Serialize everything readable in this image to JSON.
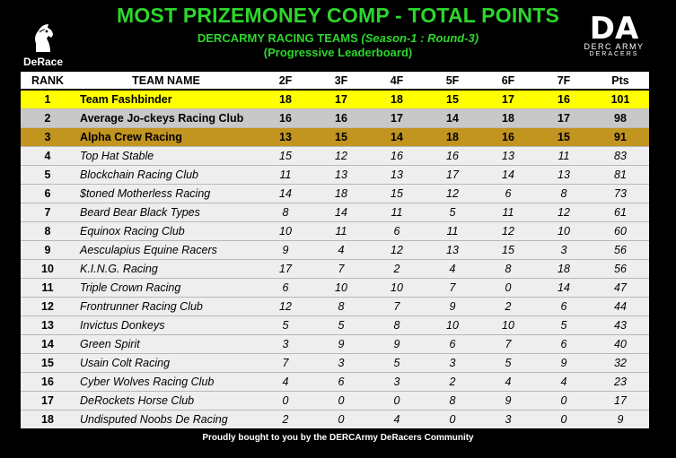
{
  "header": {
    "title": "MOST PRIZEMONEY COMP - TOTAL POINTS",
    "subtitle_main": "DERCARMY RACING TEAMS",
    "subtitle_season": "(Season-1 : Round-3)",
    "subtitle2": "(Progressive Leaderboard)"
  },
  "logos": {
    "left_text": "DeRace",
    "right_mark": "DA",
    "right_line1": "DERC ARMY",
    "right_line2": "DERACERS"
  },
  "colors": {
    "title_green": "#2dd62d",
    "first_place": "#ffff00",
    "second_place": "#c8c8c8",
    "third_place": "#c29420"
  },
  "table": {
    "columns": [
      "RANK",
      "TEAM NAME",
      "2F",
      "3F",
      "4F",
      "5F",
      "6F",
      "7F",
      "Pts"
    ],
    "rows": [
      [
        "1",
        "Team Fashbinder",
        "18",
        "17",
        "18",
        "15",
        "17",
        "16",
        "101"
      ],
      [
        "2",
        "Average Jo-ckeys Racing Club",
        "16",
        "16",
        "17",
        "14",
        "18",
        "17",
        "98"
      ],
      [
        "3",
        "Alpha Crew Racing",
        "13",
        "15",
        "14",
        "18",
        "16",
        "15",
        "91"
      ],
      [
        "4",
        "Top Hat Stable",
        "15",
        "12",
        "16",
        "16",
        "13",
        "11",
        "83"
      ],
      [
        "5",
        "Blockchain Racing Club",
        "11",
        "13",
        "13",
        "17",
        "14",
        "13",
        "81"
      ],
      [
        "6",
        "$toned Motherless Racing",
        "14",
        "18",
        "15",
        "12",
        "6",
        "8",
        "73"
      ],
      [
        "7",
        "Beard Bear Black Types",
        "8",
        "14",
        "11",
        "5",
        "11",
        "12",
        "61"
      ],
      [
        "8",
        "Equinox Racing Club",
        "10",
        "11",
        "6",
        "11",
        "12",
        "10",
        "60"
      ],
      [
        "9",
        "Aesculapius Equine Racers",
        "9",
        "4",
        "12",
        "13",
        "15",
        "3",
        "56"
      ],
      [
        "10",
        "K.I.N.G. Racing",
        "17",
        "7",
        "2",
        "4",
        "8",
        "18",
        "56"
      ],
      [
        "11",
        "Triple Crown Racing",
        "6",
        "10",
        "10",
        "7",
        "0",
        "14",
        "47"
      ],
      [
        "12",
        "Frontrunner Racing Club",
        "12",
        "8",
        "7",
        "9",
        "2",
        "6",
        "44"
      ],
      [
        "13",
        "Invictus Donkeys",
        "5",
        "5",
        "8",
        "10",
        "10",
        "5",
        "43"
      ],
      [
        "14",
        "Green Spirit",
        "3",
        "9",
        "9",
        "6",
        "7",
        "6",
        "40"
      ],
      [
        "15",
        "Usain Colt Racing",
        "7",
        "3",
        "5",
        "3",
        "5",
        "9",
        "32"
      ],
      [
        "16",
        "Cyber Wolves Racing Club",
        "4",
        "6",
        "3",
        "2",
        "4",
        "4",
        "23"
      ],
      [
        "17",
        "DeRockets Horse Club",
        "0",
        "0",
        "0",
        "8",
        "9",
        "0",
        "17"
      ],
      [
        "18",
        "Undisputed Noobs De Racing",
        "2",
        "0",
        "4",
        "0",
        "3",
        "0",
        "9"
      ]
    ]
  },
  "footer": "Proudly bought to you by the DERCArmy DeRacers Community"
}
